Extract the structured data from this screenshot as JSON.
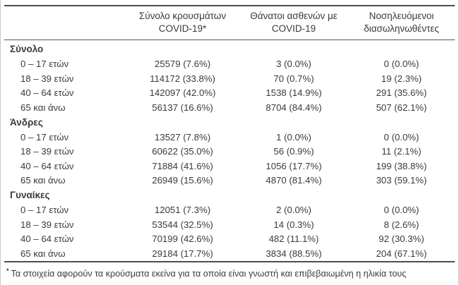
{
  "header": {
    "col_cases_line1": "Σύνολο κρουσμάτων",
    "col_cases_line2": "COVID-19*",
    "col_deaths_line1": "Θάνατοι ασθενών με",
    "col_deaths_line2": "COVID-19",
    "col_intubated_line1": "Νοσηλευόμενοι",
    "col_intubated_line2": "διασωληνωθέντες"
  },
  "sections": [
    {
      "title": "Σύνολο",
      "rows": [
        {
          "label": "0 – 17 ετών",
          "cases": "25579 (7.6%)",
          "deaths": "3 (0.0%)",
          "intubated": "0 (0.0%)"
        },
        {
          "label": "18 – 39 ετών",
          "cases": "114172 (33.8%)",
          "deaths": "70 (0.7%)",
          "intubated": "19 (2.3%)"
        },
        {
          "label": "40 – 64 ετών",
          "cases": "142097 (42.0%)",
          "deaths": "1538 (14.9%)",
          "intubated": "291 (35.6%)"
        },
        {
          "label": "65 και άνω",
          "cases": "56137 (16.6%)",
          "deaths": "8704 (84.4%)",
          "intubated": "507 (62.1%)"
        }
      ]
    },
    {
      "title": "Άνδρες",
      "rows": [
        {
          "label": "0 – 17 ετών",
          "cases": "13527 (7.8%)",
          "deaths": "1 (0.0%)",
          "intubated": "0 (0.0%)"
        },
        {
          "label": "18 – 39 ετών",
          "cases": "60622 (35.0%)",
          "deaths": "56 (0.9%)",
          "intubated": "11 (2.1%)"
        },
        {
          "label": "40 – 64 ετών",
          "cases": "71884 (41.6%)",
          "deaths": "1056 (17.7%)",
          "intubated": "199 (38.8%)"
        },
        {
          "label": "65 και άνω",
          "cases": "26949 (15.6%)",
          "deaths": "4870 (81.4%)",
          "intubated": "303 (59.1%)"
        }
      ]
    },
    {
      "title": "Γυναίκες",
      "rows": [
        {
          "label": "0 – 17 ετών",
          "cases": "12051 (7.3%)",
          "deaths": "2 (0.0%)",
          "intubated": "0 (0.0%)"
        },
        {
          "label": "18 – 39 ετών",
          "cases": "53544 (32.5%)",
          "deaths": "14 (0.3%)",
          "intubated": "8 (2.6%)"
        },
        {
          "label": "40 – 64 ετών",
          "cases": "70199 (42.6%)",
          "deaths": "482 (11.1%)",
          "intubated": "92 (30.3%)"
        },
        {
          "label": "65 και άνω",
          "cases": "29184 (17.7%)",
          "deaths": "3834 (88.5%)",
          "intubated": "204 (67.1%)"
        }
      ]
    }
  ],
  "footnote": {
    "marker": "*",
    "text": "Τα στοιχεία αφορούν τα κρούσματα εκείνα για τα οποία είναι γνωστή και επιβεβαιωμένη η ηλικία τους"
  },
  "colors": {
    "text": "#3a3a3a",
    "rule_dark": "#4d4d4d",
    "border_light": "#c9c9c9",
    "background": "#ffffff"
  }
}
